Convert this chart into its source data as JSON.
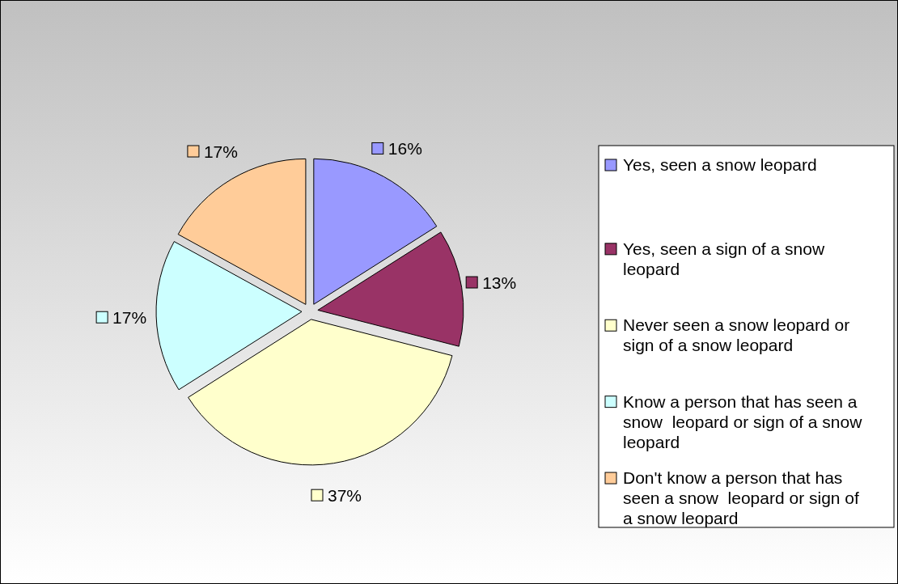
{
  "chart_data": {
    "type": "pie",
    "categories": [
      "Yes, seen a snow leopard",
      "Yes, seen a sign of a snow leopard",
      "Never seen a snow leopard or sign of a snow leopard",
      "Know a person that has seen a snow  leopard or sign of a snow leopard",
      "Don't know a person that has seen a snow  leopard or sign of a snow leopard"
    ],
    "values": [
      16,
      13,
      37,
      17,
      17
    ],
    "value_labels": [
      "16%",
      "13%",
      "37%",
      "17%",
      "17%"
    ],
    "colors": [
      "#9999ff",
      "#993366",
      "#ffffcc",
      "#ccffff",
      "#ffcc99"
    ],
    "legend": "right"
  }
}
